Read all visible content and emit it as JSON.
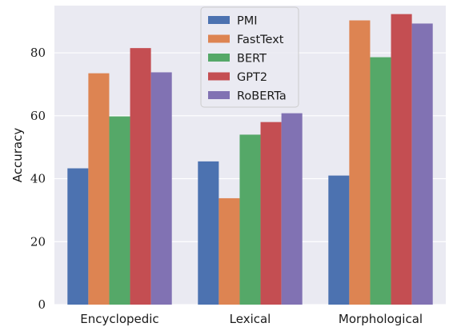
{
  "chart_data": {
    "type": "bar",
    "title": "",
    "xlabel": "",
    "ylabel": "Accuracy",
    "categories": [
      "Encyclopedic",
      "Lexical",
      "Morphological"
    ],
    "series": [
      {
        "name": "PMI",
        "values": [
          43.3,
          45.5,
          41.0
        ],
        "color": "#4c72b0"
      },
      {
        "name": "FastText",
        "values": [
          73.5,
          33.8,
          90.3
        ],
        "color": "#dd8452"
      },
      {
        "name": "BERT",
        "values": [
          59.8,
          54.0,
          78.6
        ],
        "color": "#55a868"
      },
      {
        "name": "GPT2",
        "values": [
          81.5,
          58.0,
          92.3
        ],
        "color": "#c44e52"
      },
      {
        "name": "RoBERTa",
        "values": [
          73.8,
          60.8,
          89.3
        ],
        "color": "#8172b3"
      }
    ],
    "ylim": [
      0,
      95
    ],
    "yticks": [
      0,
      20,
      40,
      60,
      80
    ],
    "grid": true,
    "legend_position": "top-center",
    "background": "#eaeaf2"
  }
}
